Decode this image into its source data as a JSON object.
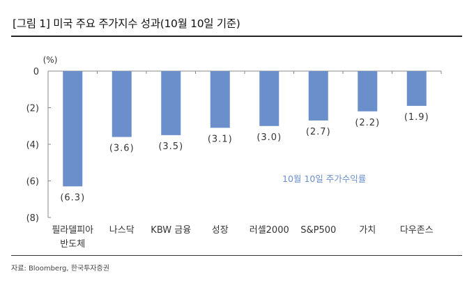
{
  "title": "[그림 1] 미국 주요 주가지수 성과(10월 10일 기준)",
  "source": "자료: Bloomberg, 한국투자증권",
  "chart_data": {
    "type": "bar",
    "title": "미국 주요 주가지수 성과(10월 10일 기준)",
    "unit_label": "(%)",
    "xlabel": "",
    "ylabel": "(%)",
    "categories": [
      [
        "필라델피아",
        "반도체"
      ],
      [
        "나스닥"
      ],
      [
        "KBW 금융"
      ],
      [
        "성장"
      ],
      [
        "러셀2000"
      ],
      [
        "S&P500"
      ],
      [
        "가치"
      ],
      [
        "다우존스"
      ]
    ],
    "values": [
      -6.3,
      -3.6,
      -3.5,
      -3.1,
      -3.0,
      -2.7,
      -2.2,
      -1.9
    ],
    "value_labels": [
      "(6.3)",
      "(3.6)",
      "(3.5)",
      "(3.1)",
      "(3.0)",
      "(2.7)",
      "(2.2)",
      "(1.9)"
    ],
    "ylim": [
      -8,
      0
    ],
    "yticks": [
      0,
      -2,
      -4,
      -6,
      -8
    ],
    "ytick_labels": [
      "0",
      "(2)",
      "(4)",
      "(6)",
      "(8)"
    ],
    "grid": false,
    "legend": {
      "entries": [
        "10월 10일 주가수익률"
      ],
      "placement": "lower-right"
    },
    "colors": {
      "bar": "#6a8fcb",
      "legend_text": "#6a8fcb",
      "axis": "#888888"
    }
  }
}
